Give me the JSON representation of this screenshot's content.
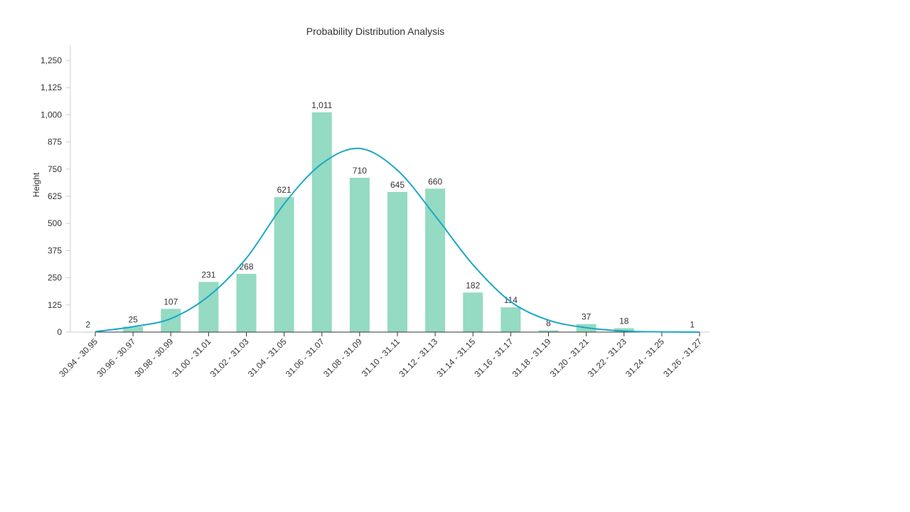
{
  "chart_data": {
    "type": "bar",
    "title": "Probability Distribution Analysis",
    "xlabel": "",
    "ylabel": "Height",
    "ylim": [
      0,
      1312.5
    ],
    "yticks": [
      "0",
      "125",
      "250",
      "375",
      "500",
      "625",
      "750",
      "875",
      "1,000",
      "1,125",
      "1,250"
    ],
    "ytick_values": [
      0,
      125,
      250,
      375,
      500,
      625,
      750,
      875,
      1000,
      1125,
      1250
    ],
    "categories": [
      "30.94 - 30.95",
      "30.96 - 30.97",
      "30.98 - 30.99",
      "31.00 - 31.01",
      "31.02 - 31.03",
      "31.04 - 31.05",
      "31.06 - 31.07",
      "31.08 - 31.09",
      "31.10 - 31.11",
      "31.12 - 31.13",
      "31.14 - 31.15",
      "31.16 - 31.17",
      "31.18 - 31.19",
      "31.20 - 31.21",
      "31.22 - 31.23",
      "31.24 - 31.25",
      "31.26 - 31.27"
    ],
    "values": [
      2,
      25,
      107,
      231,
      268,
      621,
      1011,
      710,
      645,
      660,
      182,
      114,
      8,
      37,
      18,
      0,
      1
    ],
    "value_labels": [
      "2",
      "25",
      "107",
      "231",
      "268",
      "621",
      "1,011",
      "710",
      "645",
      "660",
      "182",
      "114",
      "8",
      "37",
      "18",
      "",
      "1"
    ],
    "curve": [
      2,
      25,
      62,
      165,
      340,
      590,
      775,
      845,
      745,
      535,
      310,
      140,
      55,
      20,
      5,
      1,
      0
    ],
    "grid": false,
    "colors": {
      "bar": "#95dac2",
      "curve": "#1aa7c6"
    }
  }
}
